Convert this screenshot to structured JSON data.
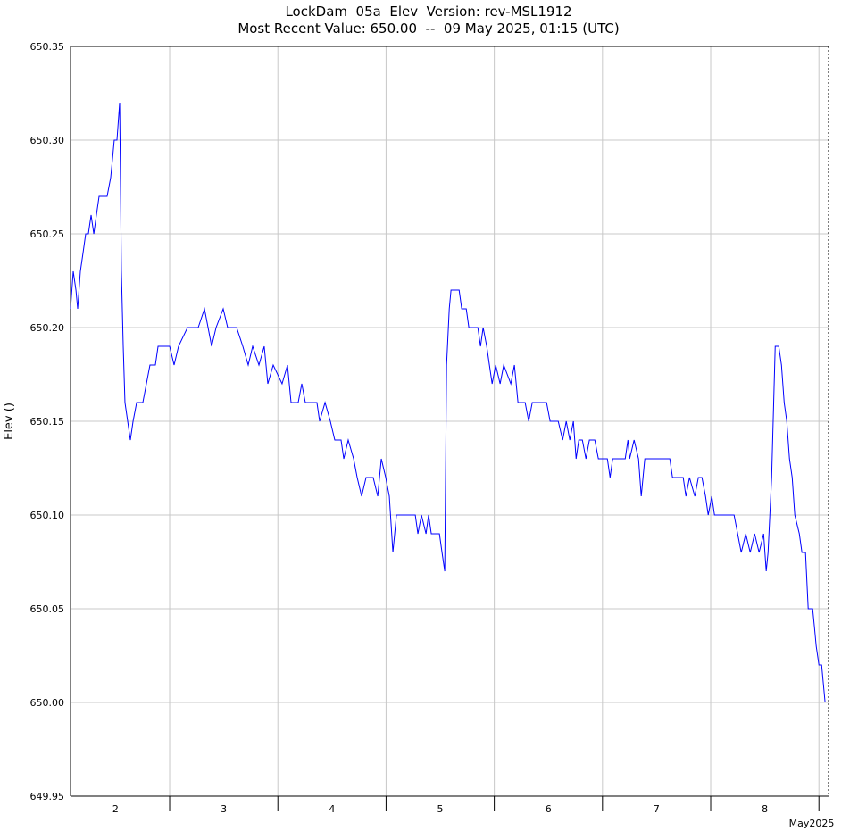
{
  "chart_data": {
    "type": "line",
    "title": "LockDam  05a  Elev  Version: rev-MSL1912",
    "subtitle": "Most Recent Value: 650.00  --  09 May 2025, 01:15 (UTC)",
    "y_label": "Elev ()",
    "x_label": "May2025",
    "color": "#0000ff",
    "grid": true,
    "xlim": [
      2.084,
      9.089
    ],
    "ylim": [
      649.95,
      650.35
    ],
    "yticks": [
      649.95,
      {
        "value": 650.0,
        "label": "650.00"
      },
      650.05,
      {
        "value": 650.1,
        "label": "650.10"
      },
      650.15,
      {
        "value": 650.2,
        "label": "650.20"
      },
      650.25,
      {
        "value": 650.3,
        "label": "650.30"
      },
      650.35
    ],
    "xticks": [
      {
        "value": 2.5,
        "label": "2"
      },
      {
        "value": 3.5,
        "label": "3"
      },
      {
        "value": 4.5,
        "label": "4"
      },
      {
        "value": 5.5,
        "label": "5"
      },
      {
        "value": 6.5,
        "label": "6"
      },
      {
        "value": 7.5,
        "label": "7"
      },
      {
        "value": 8.5,
        "label": "8"
      }
    ],
    "day_boundaries": [
      3,
      4,
      5,
      6,
      7,
      8,
      9
    ],
    "x": [
      2.084,
      2.109,
      2.134,
      2.15,
      2.175,
      2.2,
      2.224,
      2.249,
      2.274,
      2.299,
      2.323,
      2.348,
      2.381,
      2.422,
      2.455,
      2.472,
      2.488,
      2.513,
      2.538,
      2.554,
      2.571,
      2.587,
      2.612,
      2.637,
      2.662,
      2.695,
      2.752,
      2.785,
      2.818,
      2.868,
      2.893,
      2.934,
      3.0,
      3.041,
      3.082,
      3.165,
      3.264,
      3.322,
      3.355,
      3.388,
      3.429,
      3.495,
      3.536,
      3.619,
      3.676,
      3.726,
      3.767,
      3.825,
      3.874,
      3.907,
      3.957,
      4.039,
      4.089,
      4.122,
      4.188,
      4.221,
      4.254,
      4.361,
      4.386,
      4.436,
      4.485,
      4.526,
      4.584,
      4.609,
      4.65,
      4.7,
      4.733,
      4.774,
      4.815,
      4.881,
      4.923,
      4.956,
      4.997,
      5.03,
      5.063,
      5.096,
      5.27,
      5.294,
      5.327,
      5.369,
      5.393,
      5.418,
      5.493,
      5.517,
      5.542,
      5.559,
      5.584,
      5.6,
      5.675,
      5.699,
      5.741,
      5.765,
      5.848,
      5.873,
      5.897,
      5.93,
      5.955,
      5.98,
      6.013,
      6.054,
      6.087,
      6.153,
      6.186,
      6.219,
      6.285,
      6.318,
      6.351,
      6.483,
      6.516,
      6.591,
      6.632,
      6.665,
      6.698,
      6.731,
      6.756,
      6.781,
      6.814,
      6.847,
      6.879,
      6.929,
      6.962,
      7.045,
      7.07,
      7.094,
      7.21,
      7.235,
      7.251,
      7.292,
      7.333,
      7.358,
      7.391,
      7.622,
      7.647,
      7.746,
      7.771,
      7.804,
      7.853,
      7.886,
      7.919,
      7.952,
      7.977,
      8.01,
      8.035,
      8.216,
      8.249,
      8.282,
      8.324,
      8.365,
      8.406,
      8.447,
      8.489,
      8.513,
      8.53,
      8.563,
      8.596,
      8.629,
      8.654,
      8.679,
      8.703,
      8.728,
      8.753,
      8.777,
      8.819,
      8.843,
      8.876,
      8.901,
      8.942,
      8.959,
      8.975,
      9.0,
      9.025,
      9.041,
      9.057
    ],
    "values": [
      650.21,
      650.23,
      650.22,
      650.21,
      650.23,
      650.24,
      650.25,
      650.25,
      650.26,
      650.25,
      650.26,
      650.27,
      650.27,
      650.27,
      650.28,
      650.29,
      650.3,
      650.3,
      650.32,
      650.23,
      650.19,
      650.16,
      650.15,
      650.14,
      650.15,
      650.16,
      650.16,
      650.17,
      650.18,
      650.18,
      650.19,
      650.19,
      650.19,
      650.18,
      650.19,
      650.2,
      650.2,
      650.21,
      650.2,
      650.19,
      650.2,
      650.21,
      650.2,
      650.2,
      650.19,
      650.18,
      650.19,
      650.18,
      650.19,
      650.17,
      650.18,
      650.17,
      650.18,
      650.16,
      650.16,
      650.17,
      650.16,
      650.16,
      650.15,
      650.16,
      650.15,
      650.14,
      650.14,
      650.13,
      650.14,
      650.13,
      650.12,
      650.11,
      650.12,
      650.12,
      650.11,
      650.13,
      650.12,
      650.11,
      650.08,
      650.1,
      650.1,
      650.09,
      650.1,
      650.09,
      650.1,
      650.09,
      650.09,
      650.08,
      650.07,
      650.18,
      650.21,
      650.22,
      650.22,
      650.21,
      650.21,
      650.2,
      650.2,
      650.19,
      650.2,
      650.19,
      650.18,
      650.17,
      650.18,
      650.17,
      650.18,
      650.17,
      650.18,
      650.16,
      650.16,
      650.15,
      650.16,
      650.16,
      650.15,
      650.15,
      650.14,
      650.15,
      650.14,
      650.15,
      650.13,
      650.14,
      650.14,
      650.13,
      650.14,
      650.14,
      650.13,
      650.13,
      650.12,
      650.13,
      650.13,
      650.14,
      650.13,
      650.14,
      650.13,
      650.11,
      650.13,
      650.13,
      650.12,
      650.12,
      650.11,
      650.12,
      650.11,
      650.12,
      650.12,
      650.11,
      650.1,
      650.11,
      650.1,
      650.1,
      650.09,
      650.08,
      650.09,
      650.08,
      650.09,
      650.08,
      650.09,
      650.07,
      650.08,
      650.12,
      650.19,
      650.19,
      650.18,
      650.16,
      650.15,
      650.13,
      650.12,
      650.1,
      650.09,
      650.08,
      650.08,
      650.05,
      650.05,
      650.04,
      650.03,
      650.02,
      650.02,
      650.01,
      650.0
    ]
  }
}
